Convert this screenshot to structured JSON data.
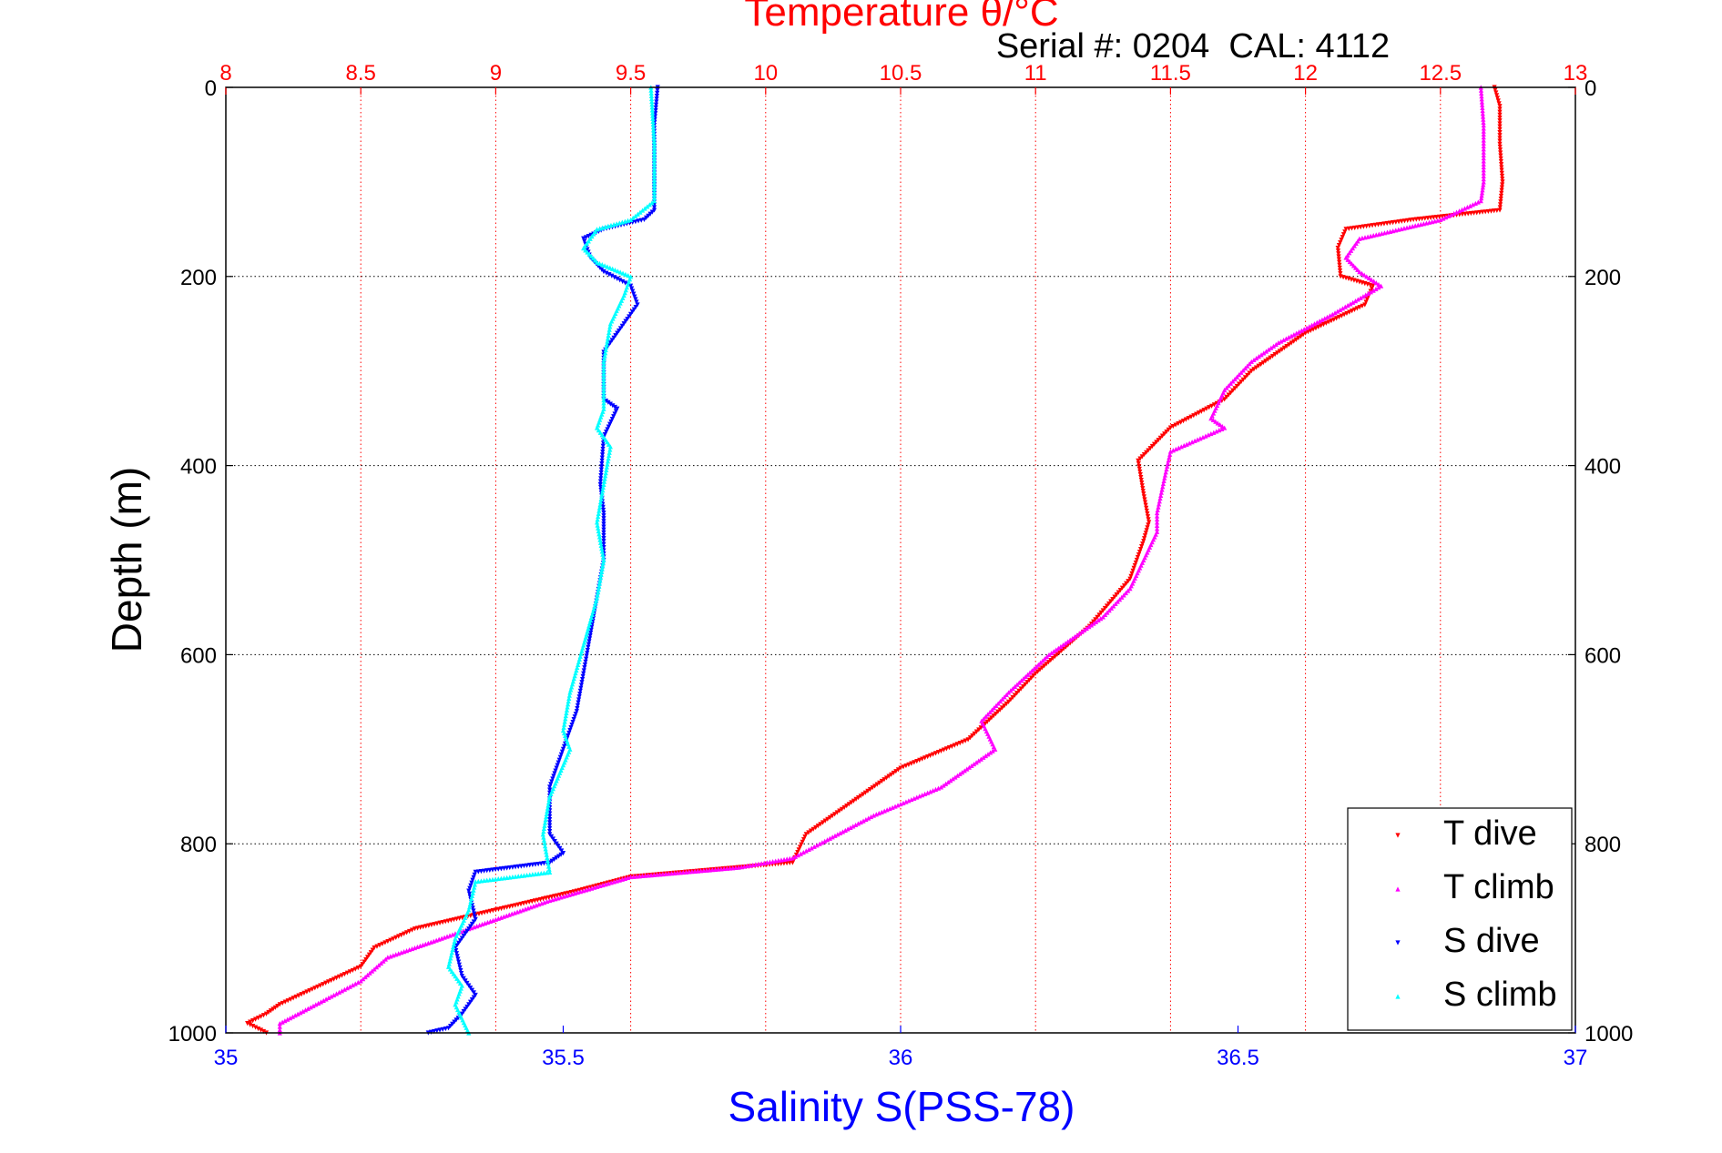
{
  "chart_data": {
    "type": "scatter",
    "title": "Temperature θ/°C",
    "subtitle": "Serial #: 0204  CAL: 4112",
    "xlabel_bottom": "Salinity S(PSS-78)",
    "ylabel": "Depth (m)",
    "x_bottom": {
      "lim": [
        35,
        37
      ],
      "ticks": [
        35,
        35.5,
        36,
        36.5,
        37
      ],
      "tick_labels": [
        "35",
        "35.5",
        "36",
        "36.5",
        "37"
      ]
    },
    "x_top": {
      "lim": [
        8,
        13
      ],
      "ticks": [
        8,
        8.5,
        9,
        9.5,
        10,
        10.5,
        11,
        11.5,
        12,
        12.5,
        13
      ],
      "tick_labels": [
        "8",
        "8.5",
        "9",
        "9.5",
        "10",
        "10.5",
        "11",
        "11.5",
        "12",
        "12.5",
        "13"
      ]
    },
    "y": {
      "lim": [
        0,
        1000
      ],
      "reversed": true,
      "ticks": [
        0,
        200,
        400,
        600,
        800,
        1000
      ],
      "tick_labels": [
        "0",
        "200",
        "400",
        "600",
        "800",
        "1000"
      ]
    },
    "grid": true,
    "legend_position": "bottom-right",
    "series": [
      {
        "name": "T dive",
        "axis": "top",
        "color": "#ff0000",
        "marker": "triangle-down",
        "points": [
          [
            12.7,
            0
          ],
          [
            12.72,
            20
          ],
          [
            12.72,
            60
          ],
          [
            12.73,
            100
          ],
          [
            12.72,
            130
          ],
          [
            12.4,
            140
          ],
          [
            12.15,
            150
          ],
          [
            12.12,
            170
          ],
          [
            12.13,
            200
          ],
          [
            12.25,
            210
          ],
          [
            12.22,
            230
          ],
          [
            12.0,
            260
          ],
          [
            11.8,
            300
          ],
          [
            11.7,
            330
          ],
          [
            11.5,
            360
          ],
          [
            11.38,
            395
          ],
          [
            11.4,
            430
          ],
          [
            11.42,
            460
          ],
          [
            11.4,
            480
          ],
          [
            11.35,
            520
          ],
          [
            11.2,
            570
          ],
          [
            11.0,
            620
          ],
          [
            10.9,
            650
          ],
          [
            10.75,
            690
          ],
          [
            10.5,
            720
          ],
          [
            10.3,
            760
          ],
          [
            10.15,
            790
          ],
          [
            10.1,
            820
          ],
          [
            9.5,
            835
          ],
          [
            9.3,
            850
          ],
          [
            9.0,
            870
          ],
          [
            8.7,
            890
          ],
          [
            8.55,
            910
          ],
          [
            8.5,
            930
          ],
          [
            8.35,
            950
          ],
          [
            8.2,
            970
          ],
          [
            8.15,
            980
          ],
          [
            8.08,
            990
          ],
          [
            8.15,
            1000
          ]
        ]
      },
      {
        "name": "T climb",
        "axis": "top",
        "color": "#ff00ff",
        "marker": "triangle-up",
        "points": [
          [
            12.65,
            0
          ],
          [
            12.66,
            40
          ],
          [
            12.66,
            100
          ],
          [
            12.65,
            120
          ],
          [
            12.5,
            140
          ],
          [
            12.2,
            160
          ],
          [
            12.15,
            180
          ],
          [
            12.2,
            195
          ],
          [
            12.28,
            210
          ],
          [
            12.1,
            240
          ],
          [
            11.9,
            270
          ],
          [
            11.8,
            290
          ],
          [
            11.7,
            320
          ],
          [
            11.65,
            350
          ],
          [
            11.7,
            360
          ],
          [
            11.5,
            385
          ],
          [
            11.48,
            410
          ],
          [
            11.45,
            450
          ],
          [
            11.45,
            470
          ],
          [
            11.35,
            530
          ],
          [
            11.25,
            560
          ],
          [
            11.05,
            600
          ],
          [
            10.9,
            640
          ],
          [
            10.8,
            670
          ],
          [
            10.85,
            700
          ],
          [
            10.65,
            740
          ],
          [
            10.4,
            770
          ],
          [
            10.2,
            800
          ],
          [
            10.1,
            815
          ],
          [
            9.9,
            825
          ],
          [
            9.5,
            835
          ],
          [
            9.2,
            860
          ],
          [
            9.0,
            880
          ],
          [
            8.8,
            900
          ],
          [
            8.6,
            920
          ],
          [
            8.5,
            945
          ],
          [
            8.4,
            960
          ],
          [
            8.2,
            990
          ],
          [
            8.2,
            1000
          ]
        ]
      },
      {
        "name": "S dive",
        "axis": "bottom",
        "color": "#0000ff",
        "marker": "triangle-down",
        "points": [
          [
            35.64,
            0
          ],
          [
            35.635,
            40
          ],
          [
            35.635,
            100
          ],
          [
            35.635,
            130
          ],
          [
            35.62,
            140
          ],
          [
            35.56,
            150
          ],
          [
            35.53,
            160
          ],
          [
            35.54,
            180
          ],
          [
            35.56,
            195
          ],
          [
            35.6,
            210
          ],
          [
            35.61,
            230
          ],
          [
            35.59,
            250
          ],
          [
            35.56,
            280
          ],
          [
            35.56,
            330
          ],
          [
            35.58,
            340
          ],
          [
            35.56,
            370
          ],
          [
            35.555,
            420
          ],
          [
            35.56,
            450
          ],
          [
            35.56,
            480
          ],
          [
            35.56,
            500
          ],
          [
            35.55,
            540
          ],
          [
            35.54,
            580
          ],
          [
            35.53,
            620
          ],
          [
            35.52,
            660
          ],
          [
            35.5,
            700
          ],
          [
            35.48,
            740
          ],
          [
            35.48,
            790
          ],
          [
            35.5,
            810
          ],
          [
            35.48,
            820
          ],
          [
            35.37,
            830
          ],
          [
            35.36,
            850
          ],
          [
            35.37,
            880
          ],
          [
            35.34,
            910
          ],
          [
            35.35,
            940
          ],
          [
            35.37,
            960
          ],
          [
            35.35,
            980
          ],
          [
            35.33,
            995
          ],
          [
            35.3,
            1000
          ]
        ]
      },
      {
        "name": "S climb",
        "axis": "bottom",
        "color": "#00ffff",
        "marker": "triangle-up",
        "points": [
          [
            35.63,
            0
          ],
          [
            35.635,
            60
          ],
          [
            35.635,
            120
          ],
          [
            35.6,
            140
          ],
          [
            35.55,
            150
          ],
          [
            35.53,
            170
          ],
          [
            35.55,
            185
          ],
          [
            35.6,
            200
          ],
          [
            35.59,
            220
          ],
          [
            35.57,
            250
          ],
          [
            35.56,
            290
          ],
          [
            35.56,
            340
          ],
          [
            35.55,
            360
          ],
          [
            35.57,
            380
          ],
          [
            35.56,
            420
          ],
          [
            35.55,
            460
          ],
          [
            35.56,
            500
          ],
          [
            35.55,
            540
          ],
          [
            35.53,
            590
          ],
          [
            35.51,
            640
          ],
          [
            35.5,
            680
          ],
          [
            35.51,
            700
          ],
          [
            35.48,
            750
          ],
          [
            35.47,
            790
          ],
          [
            35.48,
            830
          ],
          [
            35.37,
            840
          ],
          [
            35.36,
            870
          ],
          [
            35.34,
            900
          ],
          [
            35.33,
            930
          ],
          [
            35.35,
            950
          ],
          [
            35.34,
            970
          ],
          [
            35.36,
            1000
          ]
        ]
      }
    ]
  }
}
